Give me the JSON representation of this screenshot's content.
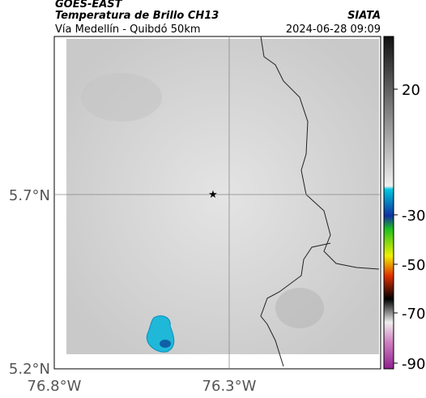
{
  "header": {
    "source": "GOES-EAST",
    "product": "Temperatura de Brillo CH13",
    "route": "Vía Medellín - Quibdó 50km",
    "org": "SIATA",
    "timestamp": "2024-06-28 09:09"
  },
  "map": {
    "lat_ticks": [
      "5.7°N",
      "5.2°N"
    ],
    "lon_ticks": [
      "76.8°W",
      "76.3°W"
    ]
  },
  "colorbar": {
    "ticks": [
      "20",
      "-30",
      "-50",
      "-70",
      "-90"
    ]
  }
}
